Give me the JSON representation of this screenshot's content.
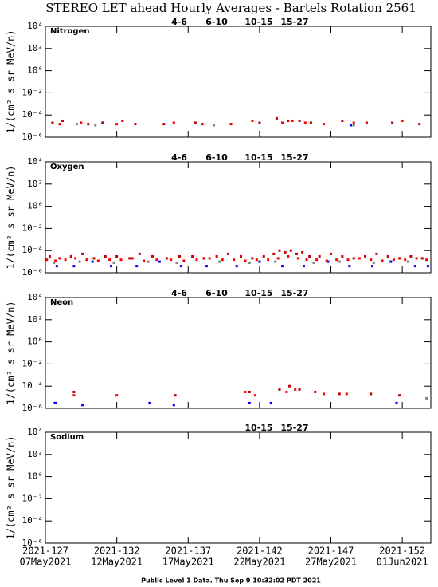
{
  "title": "STEREO LET ahead Hourly Averages - Bartels Rotation 2561",
  "footer": "Public Level 1 Data. Thu Sep  9 10:32:02 PDT 2021",
  "x_axis": {
    "xlim": [
      127,
      154
    ],
    "xticks": [
      {
        "value": 127,
        "label": "2021-127"
      },
      {
        "value": 132,
        "label": "2021-132"
      },
      {
        "value": 137,
        "label": "2021-137"
      },
      {
        "value": 142,
        "label": "2021-142"
      },
      {
        "value": 147,
        "label": "2021-147"
      },
      {
        "value": 152,
        "label": "2021-152"
      }
    ],
    "xtick_dates": [
      "07May2021",
      "12May2021",
      "17May2021",
      "22May2021",
      "27May2021",
      "01Jun2021"
    ]
  },
  "chart_data": [
    {
      "type": "scatter",
      "title": "Nitrogen",
      "ylabel": "1/(cm² s sr MeV/n)",
      "log_y": true,
      "ylim": [
        1e-06,
        10000.0
      ],
      "yticks": [
        {
          "value": 10000,
          "label": "10⁴"
        },
        {
          "value": 100,
          "label": "10²"
        },
        {
          "value": 1,
          "label": "10⁰"
        },
        {
          "value": 0.01,
          "label": "10⁻²"
        },
        {
          "value": 0.0001,
          "label": "10⁻⁴"
        },
        {
          "value": 1e-06,
          "label": "10⁻⁶"
        }
      ],
      "series": [
        {
          "name": "4-6",
          "color": "#c00000",
          "x": [
            127.5,
            128.2,
            130.0,
            131.0,
            132.4,
            133.3,
            135.3,
            137.5,
            140.0,
            142.0,
            143.2,
            144.0,
            144.8,
            145.6,
            147.8,
            149.5,
            151.3,
            153.2
          ],
          "values": [
            2e-05,
            3e-05,
            1.5e-05,
            2e-05,
            3e-05,
            1.5e-05,
            1.5e-05,
            2e-05,
            1.5e-05,
            2e-05,
            5e-05,
            3e-05,
            3e-05,
            2e-05,
            3e-05,
            2e-05,
            2e-05,
            1.5e-05
          ]
        },
        {
          "name": "6-10",
          "color": "#ff0000",
          "x": [
            128.0,
            129.5,
            132.0,
            136.0,
            138.0,
            141.5,
            143.6,
            144.3,
            145.2,
            146.5,
            148.6,
            152.0
          ],
          "values": [
            1.5e-05,
            2e-05,
            1.5e-05,
            2e-05,
            1.5e-05,
            3e-05,
            2e-05,
            3e-05,
            2e-05,
            1.5e-05,
            2e-05,
            3e-05
          ]
        },
        {
          "name": "10-15",
          "color": "#808080",
          "x": [
            129.2,
            130.5,
            138.8,
            148.6
          ],
          "values": [
            1.5e-05,
            1.2e-05,
            1.2e-05,
            1.2e-05
          ]
        },
        {
          "name": "15-27",
          "color": "#0000ff",
          "x": [
            148.4
          ],
          "values": [
            1.2e-05
          ]
        }
      ]
    },
    {
      "type": "scatter",
      "title": "Oxygen",
      "ylabel": "1/(cm² s sr MeV/n)",
      "log_y": true,
      "ylim": [
        1e-06,
        10000.0
      ],
      "yticks": [
        {
          "value": 10000,
          "label": "10⁴"
        },
        {
          "value": 100,
          "label": "10²"
        },
        {
          "value": 1,
          "label": "10⁰"
        },
        {
          "value": 0.01,
          "label": "10⁻²"
        },
        {
          "value": 0.0001,
          "label": "10⁻⁴"
        },
        {
          "value": 1e-06,
          "label": "10⁻⁶"
        }
      ],
      "series": [
        {
          "name": "4-6",
          "color": "#c00000",
          "x": [
            127.3,
            128.0,
            128.8,
            129.6,
            130.4,
            131.2,
            132.0,
            132.9,
            133.6,
            134.5,
            135.5,
            136.4,
            137.3,
            138.1,
            139.0,
            139.8,
            140.7,
            141.5,
            142.3,
            143.0,
            143.4,
            143.8,
            144.2,
            144.6,
            145.0,
            145.5,
            146.2,
            147.0,
            147.8,
            148.6,
            149.4,
            150.2,
            151.0,
            151.8,
            152.6,
            153.4
          ],
          "values": [
            3e-05,
            2e-05,
            3e-05,
            5e-05,
            2e-05,
            3e-05,
            3e-05,
            2e-05,
            5e-05,
            3e-05,
            2e-05,
            3e-05,
            3e-05,
            2e-05,
            3e-05,
            5e-05,
            3e-05,
            2e-05,
            3e-05,
            5e-05,
            0.0001,
            7e-05,
            0.0001,
            5e-05,
            7e-05,
            3e-05,
            3e-05,
            5e-05,
            3e-05,
            2e-05,
            3e-05,
            5e-05,
            3e-05,
            2e-05,
            3e-05,
            2e-05
          ]
        },
        {
          "name": "6-10",
          "color": "#ff0000",
          "x": [
            127.1,
            127.7,
            128.4,
            129.1,
            129.9,
            130.7,
            131.5,
            132.3,
            133.1,
            133.9,
            134.8,
            135.8,
            136.7,
            137.6,
            138.5,
            139.4,
            140.2,
            141.0,
            141.8,
            142.6,
            143.3,
            144.0,
            144.7,
            145.3,
            146.0,
            146.7,
            147.4,
            148.2,
            149.0,
            149.8,
            150.6,
            151.4,
            152.2,
            153.0,
            153.7
          ],
          "values": [
            1.5e-05,
            1.2e-05,
            1.5e-05,
            2e-05,
            1.5e-05,
            1.2e-05,
            1.5e-05,
            1.5e-05,
            2e-05,
            1.2e-05,
            1.5e-05,
            1.5e-05,
            1.2e-05,
            1.5e-05,
            2e-05,
            1.5e-05,
            1.5e-05,
            1.2e-05,
            1.5e-05,
            1.5e-05,
            2e-05,
            3e-05,
            2e-05,
            1.5e-05,
            1.5e-05,
            1.2e-05,
            1.5e-05,
            1.5e-05,
            2e-05,
            1.5e-05,
            1.2e-05,
            1.5e-05,
            1.5e-05,
            2e-05,
            1.5e-05
          ]
        },
        {
          "name": "10-15",
          "color": "#808080",
          "x": [
            127.6,
            129.4,
            131.8,
            134.2,
            136.2,
            139.2,
            141.3,
            143.1,
            145.8,
            147.6,
            150.0,
            152.4
          ],
          "values": [
            8e-06,
            1e-05,
            8e-06,
            1e-05,
            8e-06,
            1e-05,
            8e-06,
            1e-05,
            8e-06,
            1e-05,
            8e-06,
            1e-05
          ]
        },
        {
          "name": "15-27",
          "color": "#0000ff",
          "x": [
            127.8,
            129.0,
            130.3,
            131.6,
            133.4,
            135.0,
            136.5,
            138.3,
            140.4,
            142.0,
            143.6,
            145.1,
            146.8,
            148.3,
            149.9,
            151.2,
            152.9,
            153.8
          ],
          "values": [
            4e-06,
            4e-06,
            1e-05,
            4e-06,
            4e-06,
            1e-05,
            4e-06,
            4e-06,
            4e-06,
            1e-05,
            4e-06,
            4e-06,
            1e-05,
            4e-06,
            4e-06,
            1e-05,
            4e-06,
            4e-06
          ]
        }
      ]
    },
    {
      "type": "scatter",
      "title": "Neon",
      "ylabel": "1/(cm² s sr MeV/n)",
      "log_y": true,
      "ylim": [
        1e-06,
        10000.0
      ],
      "yticks": [
        {
          "value": 10000,
          "label": "10⁴"
        },
        {
          "value": 100,
          "label": "10²"
        },
        {
          "value": 1,
          "label": "10⁰"
        },
        {
          "value": 0.01,
          "label": "10⁻²"
        },
        {
          "value": 0.0001,
          "label": "10⁻⁴"
        },
        {
          "value": 1e-06,
          "label": "10⁻⁶"
        }
      ],
      "series": [
        {
          "name": "4-6",
          "color": "#c00000",
          "x": [
            129.0,
            136.1,
            141.3,
            143.4,
            144.1,
            144.8,
            145.9,
            147.6,
            149.8,
            151.8
          ],
          "values": [
            3e-05,
            1.5e-05,
            3e-05,
            5e-05,
            0.0001,
            5e-05,
            3e-05,
            2e-05,
            2e-05,
            1.5e-05
          ]
        },
        {
          "name": "6-10",
          "color": "#ff0000",
          "x": [
            129.0,
            132.0,
            141.0,
            141.7,
            143.9,
            144.5,
            146.5,
            148.1
          ],
          "values": [
            1.5e-05,
            1.5e-05,
            3e-05,
            1.5e-05,
            3e-05,
            5e-05,
            2e-05,
            2e-05
          ]
        },
        {
          "name": "10-15",
          "color": "#808080",
          "x": [
            127.6,
            153.7
          ],
          "values": [
            3e-06,
            8e-06
          ]
        },
        {
          "name": "15-27",
          "color": "#0000ff",
          "x": [
            127.7,
            129.6,
            134.3,
            136.0,
            141.3,
            142.8,
            151.6
          ],
          "values": [
            3e-06,
            2e-06,
            3e-06,
            2e-06,
            3e-06,
            3e-06,
            3e-06
          ]
        }
      ]
    },
    {
      "type": "scatter",
      "title": "Sodium",
      "ylabel": "1/(cm² s sr MeV/n)",
      "log_y": true,
      "ylim": [
        1e-06,
        10000.0
      ],
      "yticks": [
        {
          "value": 10000,
          "label": "10⁴"
        },
        {
          "value": 100,
          "label": "10²"
        },
        {
          "value": 1,
          "label": "10⁰"
        },
        {
          "value": 0.01,
          "label": "10⁻²"
        },
        {
          "value": 0.0001,
          "label": "10⁻⁴"
        },
        {
          "value": 1e-06,
          "label": "10⁻⁶"
        }
      ],
      "series": [
        {
          "name": "10-15",
          "color": "#808080",
          "x": [],
          "values": []
        },
        {
          "name": "15-27",
          "color": "#0000ff",
          "x": [],
          "values": []
        }
      ]
    }
  ]
}
